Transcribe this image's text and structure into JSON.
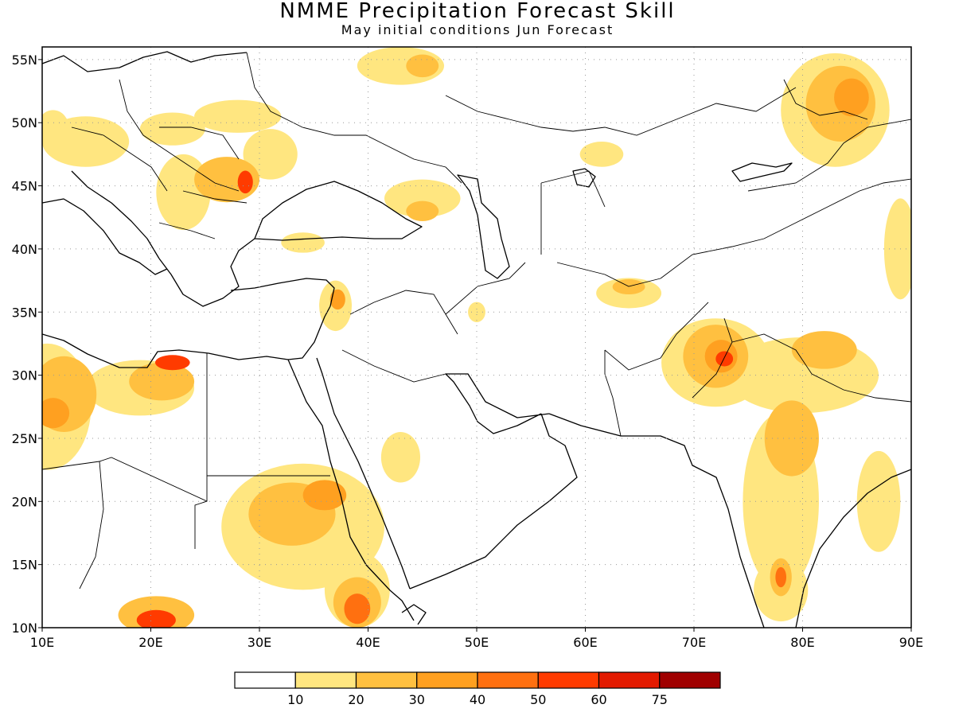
{
  "title": "NMME Precipitation Forecast Skill",
  "subtitle": "May initial conditions  Jun Forecast",
  "map": {
    "lon_range": [
      10,
      90
    ],
    "lat_range": [
      10,
      56
    ],
    "grid": "dotted",
    "x_ticks": [
      "10E",
      "20E",
      "30E",
      "40E",
      "50E",
      "60E",
      "70E",
      "80E",
      "90E"
    ],
    "y_ticks": [
      "10N",
      "15N",
      "20N",
      "25N",
      "30N",
      "35N",
      "40N",
      "45N",
      "50N",
      "55N"
    ]
  },
  "legend": {
    "colors": [
      "#ffffff",
      "#ffe680",
      "#ffc040",
      "#ffa020",
      "#ff7010",
      "#ff3b00",
      "#e31a00",
      "#a00000"
    ],
    "labels": [
      "10",
      "20",
      "30",
      "40",
      "50",
      "60",
      "75"
    ]
  },
  "regions": [
    {
      "name": "west-africa",
      "cls": 1,
      "lon": 10.5,
      "lat": 27.5,
      "rx": 4,
      "ry": 5
    },
    {
      "name": "west-africa",
      "cls": 2,
      "lon": 12,
      "lat": 28.5,
      "rx": 3,
      "ry": 3
    },
    {
      "name": "west-africa",
      "cls": 3,
      "lon": 11,
      "lat": 27,
      "rx": 1.5,
      "ry": 1.2
    },
    {
      "name": "libya-egypt",
      "cls": 1,
      "lon": 19,
      "lat": 29,
      "rx": 5,
      "ry": 2.2
    },
    {
      "name": "libya-egypt",
      "cls": 2,
      "lon": 21,
      "lat": 29.5,
      "rx": 3,
      "ry": 1.5
    },
    {
      "name": "libya-egypt",
      "cls": 5,
      "lon": 22,
      "lat": 31,
      "rx": 1.6,
      "ry": 0.6
    },
    {
      "name": "sahel",
      "cls": 1,
      "lon": 34,
      "lat": 18,
      "rx": 7.5,
      "ry": 5
    },
    {
      "name": "sahel",
      "cls": 2,
      "lon": 33,
      "lat": 19,
      "rx": 4,
      "ry": 2.5
    },
    {
      "name": "sahel",
      "cls": 3,
      "lon": 36,
      "lat": 20.5,
      "rx": 2,
      "ry": 1.2
    },
    {
      "name": "ethiopia",
      "cls": 1,
      "lon": 39,
      "lat": 13,
      "rx": 3,
      "ry": 3
    },
    {
      "name": "ethiopia",
      "cls": 2,
      "lon": 39,
      "lat": 12,
      "rx": 2.2,
      "ry": 2
    },
    {
      "name": "ethiopia",
      "cls": 4,
      "lon": 39,
      "lat": 11.5,
      "rx": 1.2,
      "ry": 1.2
    },
    {
      "name": "south-sudan",
      "cls": 2,
      "lon": 20.5,
      "lat": 11,
      "rx": 3.5,
      "ry": 1.5
    },
    {
      "name": "south-sudan",
      "cls": 5,
      "lon": 20.5,
      "lat": 10.6,
      "rx": 1.8,
      "ry": 0.8
    },
    {
      "name": "arabia",
      "cls": 1,
      "lon": 43,
      "lat": 23.5,
      "rx": 1.8,
      "ry": 2
    },
    {
      "name": "syria",
      "cls": 1,
      "lon": 37,
      "lat": 35.5,
      "rx": 1.5,
      "ry": 2
    },
    {
      "name": "syria",
      "cls": 3,
      "lon": 37.2,
      "lat": 36,
      "rx": 0.7,
      "ry": 0.8
    },
    {
      "name": "turkey",
      "cls": 1,
      "lon": 34,
      "lat": 40.5,
      "rx": 2,
      "ry": 0.8
    },
    {
      "name": "caucasus",
      "cls": 1,
      "lon": 45,
      "lat": 44,
      "rx": 3.5,
      "ry": 1.5
    },
    {
      "name": "caucasus",
      "cls": 2,
      "lon": 45,
      "lat": 43,
      "rx": 1.5,
      "ry": 0.8
    },
    {
      "name": "balkans",
      "cls": 1,
      "lon": 23,
      "lat": 44.5,
      "rx": 2.5,
      "ry": 3
    },
    {
      "name": "balkans",
      "cls": 2,
      "lon": 27,
      "lat": 45.5,
      "rx": 3,
      "ry": 1.8
    },
    {
      "name": "balkans",
      "cls": 5,
      "lon": 28.7,
      "lat": 45.3,
      "rx": 0.7,
      "ry": 0.9
    },
    {
      "name": "central-europe",
      "cls": 1,
      "lon": 14,
      "lat": 48.5,
      "rx": 4,
      "ry": 2
    },
    {
      "name": "central-europe",
      "cls": 1,
      "lon": 22,
      "lat": 49.5,
      "rx": 3,
      "ry": 1.3
    },
    {
      "name": "central-europe",
      "cls": 1,
      "lon": 28,
      "lat": 50.5,
      "rx": 4,
      "ry": 1.3
    },
    {
      "name": "central-europe",
      "cls": 1,
      "lon": 11,
      "lat": 49.5,
      "rx": 1.5,
      "ry": 1.5
    },
    {
      "name": "ukraine",
      "cls": 1,
      "lon": 31,
      "lat": 47.5,
      "rx": 2.5,
      "ry": 2
    },
    {
      "name": "russia",
      "cls": 1,
      "lon": 43,
      "lat": 54.5,
      "rx": 4,
      "ry": 1.5
    },
    {
      "name": "russia",
      "cls": 2,
      "lon": 45,
      "lat": 54.5,
      "rx": 1.5,
      "ry": 0.9
    },
    {
      "name": "kazakhstan",
      "cls": 1,
      "lon": 61.5,
      "lat": 47.5,
      "rx": 2,
      "ry": 1
    },
    {
      "name": "turkmenistan",
      "cls": 1,
      "lon": 64,
      "lat": 36.5,
      "rx": 3,
      "ry": 1.2
    },
    {
      "name": "turkmenistan",
      "cls": 2,
      "lon": 64,
      "lat": 37,
      "rx": 1.5,
      "ry": 0.6
    },
    {
      "name": "iran",
      "cls": 1,
      "lon": 50,
      "lat": 35,
      "rx": 0.8,
      "ry": 0.8
    },
    {
      "name": "altai",
      "cls": 1,
      "lon": 83,
      "lat": 51,
      "rx": 5,
      "ry": 4.5
    },
    {
      "name": "altai",
      "cls": 2,
      "lon": 83.5,
      "lat": 51.5,
      "rx": 3.2,
      "ry": 3
    },
    {
      "name": "altai",
      "cls": 3,
      "lon": 84.5,
      "lat": 52,
      "rx": 1.6,
      "ry": 1.5
    },
    {
      "name": "western-china",
      "cls": 1,
      "lon": 89,
      "lat": 40,
      "rx": 1.5,
      "ry": 4
    },
    {
      "name": "pakistan",
      "cls": 1,
      "lon": 72,
      "lat": 31,
      "rx": 5,
      "ry": 3.5
    },
    {
      "name": "pakistan",
      "cls": 2,
      "lon": 72,
      "lat": 31.5,
      "rx": 3,
      "ry": 2.5
    },
    {
      "name": "pakistan",
      "cls": 3,
      "lon": 72.5,
      "lat": 31.5,
      "rx": 1.5,
      "ry": 1.3
    },
    {
      "name": "pakistan",
      "cls": 5,
      "lon": 72.8,
      "lat": 31.3,
      "rx": 0.8,
      "ry": 0.6
    },
    {
      "name": "india",
      "cls": 1,
      "lon": 80,
      "lat": 30,
      "rx": 7,
      "ry": 3
    },
    {
      "name": "india",
      "cls": 1,
      "lon": 78,
      "lat": 20,
      "rx": 3.5,
      "ry": 7
    },
    {
      "name": "india",
      "cls": 1,
      "lon": 78,
      "lat": 13,
      "rx": 2.5,
      "ry": 2.5
    },
    {
      "name": "india",
      "cls": 2,
      "lon": 79,
      "lat": 25,
      "rx": 2.5,
      "ry": 3
    },
    {
      "name": "india",
      "cls": 2,
      "lon": 78,
      "lat": 14,
      "rx": 1,
      "ry": 1.5
    },
    {
      "name": "india",
      "cls": 4,
      "lon": 78,
      "lat": 14,
      "rx": 0.5,
      "ry": 0.8
    },
    {
      "name": "india",
      "cls": 2,
      "lon": 82,
      "lat": 32,
      "rx": 3,
      "ry": 1.5
    },
    {
      "name": "bangladesh",
      "cls": 1,
      "lon": 87,
      "lat": 20,
      "rx": 2,
      "ry": 4
    }
  ]
}
